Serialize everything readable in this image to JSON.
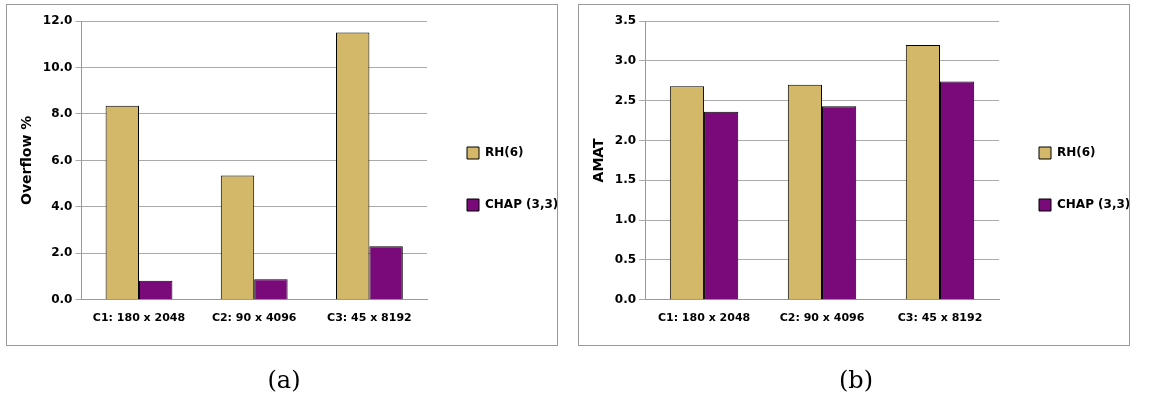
{
  "chart_data": [
    {
      "type": "bar",
      "ylabel": "Overflow %",
      "categories": [
        "C1: 180 x 2048",
        "C2: 90 x 4096",
        "C3: 45 x 8192"
      ],
      "series": [
        {
          "name": "RH(6)",
          "color": "#d2b868",
          "values": [
            8.35,
            5.35,
            11.5
          ]
        },
        {
          "name": "CHAP (3,3)",
          "color": "#7a0a7a",
          "values": [
            0.82,
            0.88,
            2.3
          ]
        }
      ],
      "ylim": [
        0,
        12
      ],
      "yticks": [
        {
          "value": 0,
          "label": "0.0"
        },
        {
          "value": 2,
          "label": "2.0"
        },
        {
          "value": 4,
          "label": "4.0"
        },
        {
          "value": 6,
          "label": "6.0"
        },
        {
          "value": 8,
          "label": "8.0"
        },
        {
          "value": 10,
          "label": "10.0"
        },
        {
          "value": 12,
          "label": "12.0"
        }
      ],
      "grid": "y",
      "legend": "right",
      "annotations": [
        "(a)"
      ]
    },
    {
      "type": "bar",
      "ylabel": "AMAT",
      "categories": [
        "C1: 180 x 2048",
        "C2: 90 x 4096",
        "C3: 45 x 8192"
      ],
      "series": [
        {
          "name": "RH(6)",
          "color": "#d2b868",
          "values": [
            2.68,
            2.7,
            3.2
          ]
        },
        {
          "name": "CHAP (3,3)",
          "color": "#7a0a7a",
          "values": [
            2.36,
            2.43,
            2.74
          ]
        }
      ],
      "ylim": [
        0,
        3.5
      ],
      "yticks": [
        {
          "value": 0,
          "label": "0.0"
        },
        {
          "value": 0.5,
          "label": "0.5"
        },
        {
          "value": 1,
          "label": "1.0"
        },
        {
          "value": 1.5,
          "label": "1.5"
        },
        {
          "value": 2,
          "label": "2.0"
        },
        {
          "value": 2.5,
          "label": "2.5"
        },
        {
          "value": 3,
          "label": "3.0"
        },
        {
          "value": 3.5,
          "label": "3.5"
        }
      ],
      "grid": "y",
      "legend": "right",
      "annotations": [
        "(b)"
      ]
    }
  ]
}
